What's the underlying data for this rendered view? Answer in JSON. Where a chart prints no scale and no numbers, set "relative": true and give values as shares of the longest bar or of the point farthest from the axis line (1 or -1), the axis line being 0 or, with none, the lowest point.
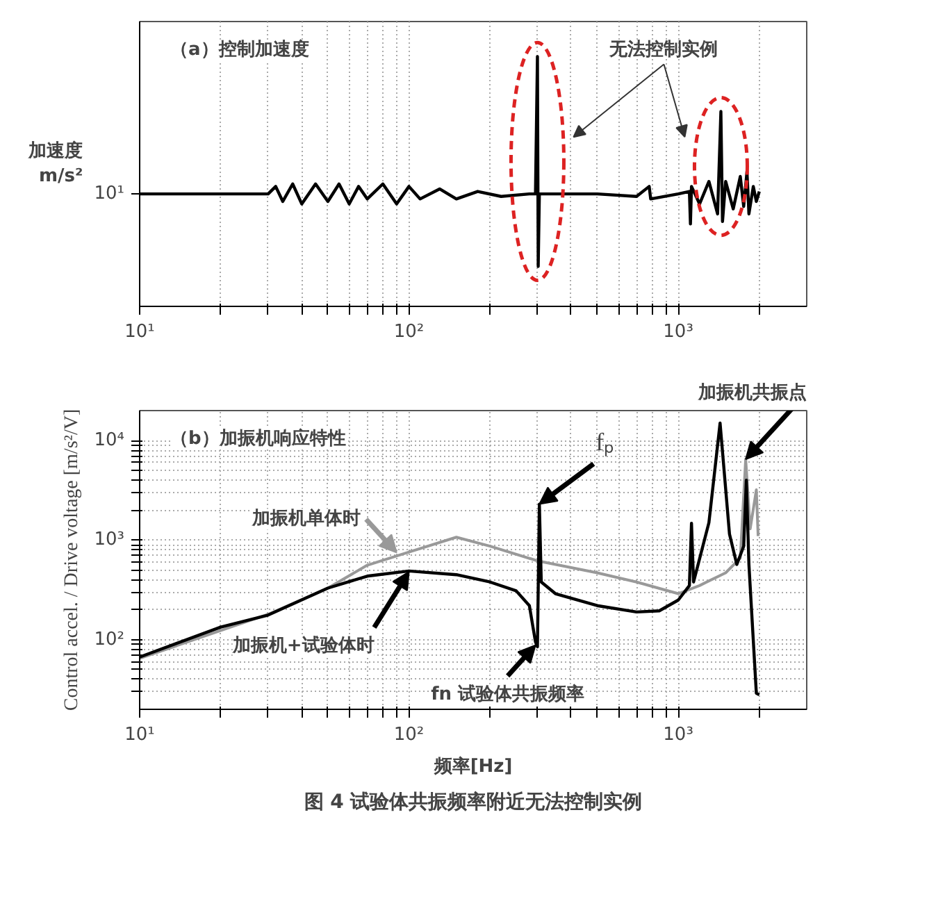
{
  "chart_data": [
    {
      "type": "line",
      "title": "（a）控制加速度",
      "ylabel": "加速度 m/s²",
      "relative": true,
      "log": "x",
      "grid": true,
      "tick_labels": "x",
      "xlim": [
        10,
        3000
      ],
      "xticks": [
        {
          "value": 10,
          "label": "10¹"
        },
        {
          "value": 20,
          "label": null
        },
        {
          "value": 30,
          "label": null
        },
        {
          "value": 40,
          "label": null
        },
        {
          "value": 50,
          "label": null
        },
        {
          "value": 60,
          "label": null
        },
        {
          "value": 70,
          "label": null
        },
        {
          "value": 80,
          "label": null
        },
        {
          "value": 90,
          "label": null
        },
        {
          "value": 100,
          "label": "10²"
        },
        {
          "value": 200,
          "label": null
        },
        {
          "value": 300,
          "label": null
        },
        {
          "value": 400,
          "label": null
        },
        {
          "value": 500,
          "label": null
        },
        {
          "value": 600,
          "label": null
        },
        {
          "value": 700,
          "label": null
        },
        {
          "value": 800,
          "label": null
        },
        {
          "value": 900,
          "label": null
        },
        {
          "value": 1000,
          "label": "10³"
        },
        {
          "value": 2000,
          "label": null
        }
      ],
      "annotations": [
        "无法控制实例",
        "10¹"
      ],
      "series": [
        {
          "color": "#000000",
          "x": [
            10,
            20,
            30,
            32,
            34,
            37,
            40,
            45,
            50,
            55,
            60,
            65,
            70,
            80,
            90,
            100,
            110,
            130,
            150,
            180,
            220,
            280,
            295,
            300,
            302,
            305,
            350,
            500,
            700,
            780,
            790,
            1000,
            1100,
            1110,
            1120,
            1200,
            1300,
            1400,
            1440,
            1460,
            1500,
            1600,
            1700,
            1750,
            1800,
            1830,
            1900,
            1950,
            2000
          ],
          "values": [
            0.45,
            0.45,
            0.45,
            0.48,
            0.42,
            0.49,
            0.41,
            0.49,
            0.42,
            0.49,
            0.41,
            0.48,
            0.43,
            0.49,
            0.41,
            0.48,
            0.43,
            0.47,
            0.43,
            0.46,
            0.44,
            0.45,
            0.45,
            1.0,
            0.16,
            0.45,
            0.45,
            0.45,
            0.44,
            0.48,
            0.43,
            0.45,
            0.46,
            0.33,
            0.48,
            0.41,
            0.5,
            0.37,
            0.78,
            0.34,
            0.5,
            0.39,
            0.52,
            0.4,
            0.54,
            0.37,
            0.48,
            0.42,
            0.46
          ]
        }
      ]
    },
    {
      "type": "line",
      "title": "（b）加振机响应特性",
      "xlabel": "频率[Hz]",
      "ylabel": "Control accel. / Drive voltage [m/s²/V]",
      "log": "xy",
      "grid": true,
      "xlim": [
        10,
        3000
      ],
      "ylim": [
        20,
        20000
      ],
      "xticks": [
        {
          "value": 10,
          "label": "10¹"
        },
        {
          "value": 20,
          "label": null
        },
        {
          "value": 30,
          "label": null
        },
        {
          "value": 40,
          "label": null
        },
        {
          "value": 50,
          "label": null
        },
        {
          "value": 60,
          "label": null
        },
        {
          "value": 70,
          "label": null
        },
        {
          "value": 80,
          "label": null
        },
        {
          "value": 90,
          "label": null
        },
        {
          "value": 100,
          "label": "10²"
        },
        {
          "value": 200,
          "label": null
        },
        {
          "value": 300,
          "label": null
        },
        {
          "value": 400,
          "label": null
        },
        {
          "value": 500,
          "label": null
        },
        {
          "value": 600,
          "label": null
        },
        {
          "value": 700,
          "label": null
        },
        {
          "value": 800,
          "label": null
        },
        {
          "value": 900,
          "label": null
        },
        {
          "value": 1000,
          "label": "10³"
        },
        {
          "value": 2000,
          "label": null
        }
      ],
      "yticks": [
        {
          "value": 30,
          "label": null
        },
        {
          "value": 40,
          "label": null
        },
        {
          "value": 50,
          "label": null
        },
        {
          "value": 60,
          "label": null
        },
        {
          "value": 70,
          "label": null
        },
        {
          "value": 80,
          "label": null
        },
        {
          "value": 90,
          "label": null
        },
        {
          "value": 100,
          "label": "10²"
        },
        {
          "value": 200,
          "label": null
        },
        {
          "value": 300,
          "label": null
        },
        {
          "value": 400,
          "label": null
        },
        {
          "value": 500,
          "label": null
        },
        {
          "value": 600,
          "label": null
        },
        {
          "value": 700,
          "label": null
        },
        {
          "value": 800,
          "label": null
        },
        {
          "value": 900,
          "label": null
        },
        {
          "value": 1000,
          "label": "10³"
        },
        {
          "value": 2000,
          "label": null
        },
        {
          "value": 3000,
          "label": null
        },
        {
          "value": 4000,
          "label": null
        },
        {
          "value": 5000,
          "label": null
        },
        {
          "value": 6000,
          "label": null
        },
        {
          "value": 7000,
          "label": null
        },
        {
          "value": 8000,
          "label": null
        },
        {
          "value": 9000,
          "label": null
        },
        {
          "value": 10000,
          "label": "10⁴"
        }
      ],
      "annotations": [
        {
          "text": "fₚ",
          "x": 305,
          "y": 2300
        },
        {
          "text": "加振机共振点",
          "x": 1780,
          "y": 6500
        },
        {
          "text": "加振机单体时",
          "x": 90,
          "y": 750
        },
        {
          "text": "加振机+试验体时",
          "x": 100,
          "y": 480
        },
        {
          "text": "fn 试验体共振频率",
          "x": 295,
          "y": 88
        },
        "图 4 试验体共振频率附近无法控制实例"
      ],
      "series": [
        {
          "color": "#999999",
          "x": [
            10,
            30,
            50,
            70,
            100,
            150,
            200,
            300,
            500,
            700,
            1000,
            1200,
            1500,
            1700,
            1780,
            1850,
            1950,
            1980
          ],
          "values": [
            65,
            180,
            330,
            560,
            760,
            1070,
            870,
            620,
            470,
            380,
            290,
            350,
            470,
            660,
            6500,
            1300,
            3200,
            1100
          ]
        },
        {
          "color": "#000000",
          "x": [
            10,
            20,
            30,
            50,
            70,
            100,
            150,
            200,
            250,
            280,
            295,
            300,
            305,
            310,
            350,
            500,
            700,
            850,
            1000,
            1100,
            1120,
            1140,
            1300,
            1430,
            1550,
            1650,
            1750,
            1790,
            1830,
            1950,
            2000
          ],
          "values": [
            67,
            134,
            177,
            330,
            435,
            490,
            450,
            380,
            310,
            220,
            95,
            85,
            2300,
            380,
            290,
            220,
            190,
            195,
            250,
            350,
            1480,
            380,
            1500,
            15000,
            1150,
            570,
            870,
            4000,
            570,
            29,
            28
          ]
        }
      ]
    }
  ]
}
